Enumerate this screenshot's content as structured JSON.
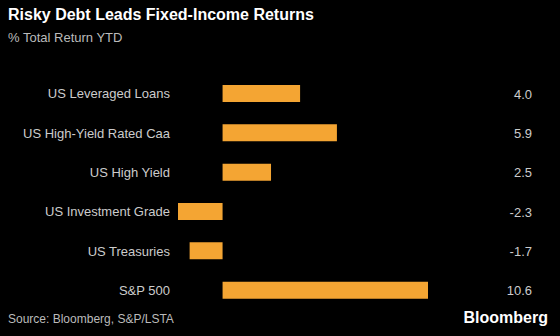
{
  "chart_data": {
    "type": "bar",
    "title": "Risky Debt Leads Fixed-Income Returns",
    "subtitle": "% Total Return YTD",
    "source": "Source: Bloomberg, S&P/LSTA",
    "logo": "Bloomberg",
    "orientation": "horizontal",
    "categories": [
      "US Leveraged Loans",
      "US High-Yield Rated Caa",
      "US High Yield",
      "US Investment Grade",
      "US Treasuries",
      "S&P 500"
    ],
    "values": [
      4.0,
      5.9,
      2.5,
      -2.3,
      -1.7,
      10.6
    ],
    "value_labels": [
      "4.0",
      "5.9",
      "2.5",
      "-2.3",
      "-1.7",
      "10.6"
    ],
    "data_labels": true,
    "color": "#f4a533",
    "xlim": [
      -2.3,
      10.6
    ],
    "tick_labels": false,
    "grid": false
  }
}
